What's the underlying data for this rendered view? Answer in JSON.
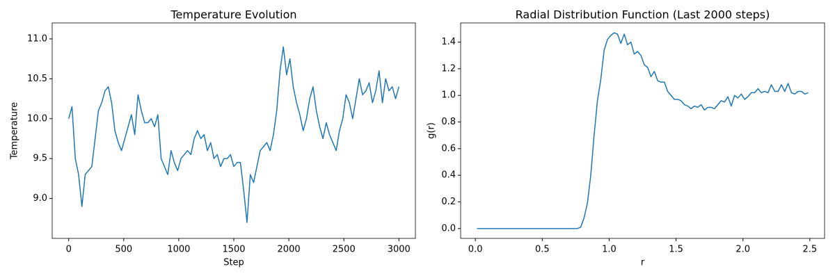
{
  "chart_data": [
    {
      "type": "line",
      "title": "Temperature Evolution",
      "xlabel": "Step",
      "ylabel": "Temperature",
      "color": "#1f77b4",
      "x": [
        0,
        30,
        60,
        90,
        120,
        150,
        180,
        210,
        240,
        270,
        300,
        330,
        360,
        390,
        420,
        450,
        480,
        510,
        540,
        570,
        600,
        630,
        660,
        690,
        720,
        750,
        780,
        810,
        840,
        870,
        900,
        930,
        960,
        990,
        1020,
        1050,
        1080,
        1110,
        1140,
        1170,
        1200,
        1230,
        1260,
        1290,
        1320,
        1350,
        1380,
        1410,
        1440,
        1470,
        1500,
        1530,
        1560,
        1590,
        1620,
        1650,
        1680,
        1710,
        1740,
        1770,
        1800,
        1830,
        1860,
        1890,
        1920,
        1950,
        1980,
        2010,
        2040,
        2070,
        2100,
        2130,
        2160,
        2190,
        2220,
        2250,
        2280,
        2310,
        2340,
        2370,
        2400,
        2430,
        2460,
        2490,
        2520,
        2550,
        2580,
        2610,
        2640,
        2670,
        2700,
        2730,
        2760,
        2790,
        2820,
        2850,
        2880,
        2910,
        2940,
        2970,
        3000
      ],
      "values": [
        10.0,
        10.15,
        9.5,
        9.3,
        8.9,
        9.3,
        9.35,
        9.4,
        9.75,
        10.1,
        10.2,
        10.35,
        10.4,
        10.2,
        9.85,
        9.7,
        9.6,
        9.75,
        9.9,
        10.05,
        9.8,
        10.3,
        10.1,
        9.95,
        9.95,
        10.0,
        9.9,
        10.05,
        9.5,
        9.4,
        9.3,
        9.6,
        9.45,
        9.35,
        9.5,
        9.55,
        9.6,
        9.55,
        9.75,
        9.85,
        9.75,
        9.8,
        9.6,
        9.7,
        9.5,
        9.55,
        9.4,
        9.5,
        9.5,
        9.55,
        9.4,
        9.45,
        9.45,
        9.1,
        8.7,
        9.3,
        9.2,
        9.4,
        9.6,
        9.65,
        9.7,
        9.6,
        9.8,
        10.1,
        10.6,
        10.9,
        10.55,
        10.75,
        10.4,
        10.2,
        10.05,
        9.85,
        10.0,
        10.25,
        10.4,
        10.1,
        9.9,
        9.75,
        9.95,
        9.8,
        9.7,
        9.6,
        9.85,
        10.0,
        10.3,
        10.2,
        10.0,
        10.25,
        10.5,
        10.3,
        10.35,
        10.45,
        10.2,
        10.35,
        10.6,
        10.2,
        10.5,
        10.35,
        10.4,
        10.25,
        10.4
      ],
      "xlim": [
        -150,
        3150
      ],
      "ylim": [
        8.5,
        11.2
      ],
      "xticks": [
        0,
        500,
        1000,
        1500,
        2000,
        2500,
        3000
      ],
      "yticks": [
        {
          "value": 9,
          "label": "9.0"
        },
        9.5,
        {
          "value": 10,
          "label": "10.0"
        },
        10.5,
        {
          "value": 11,
          "label": "11.0"
        }
      ]
    },
    {
      "type": "line",
      "title": "Radial Distribution Function (Last 2000 steps)",
      "xlabel": "r",
      "ylabel": "g(r)",
      "color": "#1f77b4",
      "x": [
        0.0125,
        0.0375,
        0.0625,
        0.0875,
        0.1125,
        0.1375,
        0.1625,
        0.1875,
        0.2125,
        0.2375,
        0.2625,
        0.2875,
        0.3125,
        0.3375,
        0.3625,
        0.3875,
        0.4125,
        0.4375,
        0.4625,
        0.4875,
        0.5125,
        0.5375,
        0.5625,
        0.5875,
        0.6125,
        0.6375,
        0.6625,
        0.6875,
        0.7125,
        0.7375,
        0.7625,
        0.7875,
        0.8125,
        0.8375,
        0.8625,
        0.8875,
        0.9125,
        0.9375,
        0.9625,
        0.9875,
        1.0125,
        1.0375,
        1.0625,
        1.0875,
        1.1125,
        1.1375,
        1.1625,
        1.1875,
        1.2125,
        1.2375,
        1.2625,
        1.2875,
        1.3125,
        1.3375,
        1.3625,
        1.3875,
        1.4125,
        1.4375,
        1.4625,
        1.4875,
        1.5125,
        1.5375,
        1.5625,
        1.5875,
        1.6125,
        1.6375,
        1.6625,
        1.6875,
        1.7125,
        1.7375,
        1.7625,
        1.7875,
        1.8125,
        1.8375,
        1.8625,
        1.8875,
        1.9125,
        1.9375,
        1.9625,
        1.9875,
        2.0125,
        2.0375,
        2.0625,
        2.0875,
        2.1125,
        2.1375,
        2.1625,
        2.1875,
        2.2125,
        2.2375,
        2.2625,
        2.2875,
        2.3125,
        2.3375,
        2.3625,
        2.3875,
        2.4125,
        2.4375,
        2.4625,
        2.4875
      ],
      "values": [
        0,
        0,
        0,
        0,
        0,
        0,
        0,
        0,
        0,
        0,
        0,
        0,
        0,
        0,
        0,
        0,
        0,
        0,
        0,
        0,
        0,
        0,
        0,
        0,
        0,
        0,
        0,
        0,
        0,
        0,
        0,
        0.01,
        0.08,
        0.19,
        0.4,
        0.7,
        0.96,
        1.12,
        1.34,
        1.42,
        1.45,
        1.47,
        1.46,
        1.39,
        1.46,
        1.38,
        1.4,
        1.31,
        1.33,
        1.3,
        1.23,
        1.21,
        1.14,
        1.18,
        1.11,
        1.1,
        1.1,
        1.03,
        1.0,
        0.97,
        0.97,
        0.96,
        0.93,
        0.92,
        0.9,
        0.92,
        0.91,
        0.93,
        0.89,
        0.91,
        0.91,
        0.9,
        0.93,
        0.96,
        0.95,
        0.99,
        0.92,
        1.0,
        0.98,
        1.01,
        0.97,
        0.99,
        1.02,
        1.02,
        1.05,
        1.02,
        1.03,
        1.02,
        1.08,
        1.03,
        1.03,
        1.08,
        1.03,
        1.09,
        1.02,
        1.01,
        1.03,
        1.03,
        1.01,
        1.02
      ],
      "xlim": [
        -0.11,
        2.61
      ],
      "ylim": [
        -0.074,
        1.544
      ],
      "xticks": [
        {
          "value": 0,
          "label": "0.0"
        },
        0.5,
        {
          "value": 1,
          "label": "1.0"
        },
        1.5,
        {
          "value": 2,
          "label": "2.0"
        },
        2.5
      ],
      "yticks": [
        {
          "value": 0,
          "label": "0.0"
        },
        0.2,
        0.4,
        0.6,
        0.8,
        {
          "value": 1,
          "label": "1.0"
        },
        1.2,
        1.4
      ]
    }
  ]
}
